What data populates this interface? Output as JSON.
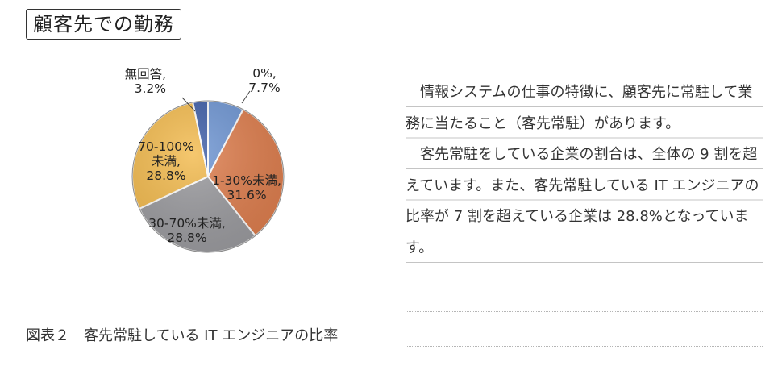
{
  "header": {
    "title": "顧客先での勤務"
  },
  "chart_data": {
    "type": "pie",
    "slices": [
      {
        "label_lines": [
          "0%,",
          "7.7%"
        ],
        "category": "0%",
        "value": 7.7,
        "color": "#6f96d3"
      },
      {
        "label_lines": [
          "1-30%未満,",
          "31.6%"
        ],
        "category": "1-30%未満",
        "value": 31.6,
        "color": "#df7f4f"
      },
      {
        "label_lines": [
          "30-70%未満,",
          "28.8%"
        ],
        "category": "30-70%未満",
        "value": 28.8,
        "color": "#9c9ca0"
      },
      {
        "label_lines": [
          "70-100%",
          "未満,",
          "28.8%"
        ],
        "category": "70-100%未満",
        "value": 28.8,
        "color": "#f3bb4f"
      },
      {
        "label_lines": [
          "無回答,",
          "3.2%"
        ],
        "category": "無回答",
        "value": 3.2,
        "color": "#3f5fa8"
      }
    ]
  },
  "caption": "図表２　客先常駐している IT エンジニアの比率",
  "body": {
    "paragraph1": "情報システムの仕事の特徴に、顧客先に常駐して業務に当たること（客先常駐）があります。",
    "paragraph2": "客先常駐をしている企業の割合は、全体の 9 割を超えています。また、客先常駐している IT エンジニアの比率が 7 割を超えている企業は 28.8%となっています。"
  }
}
